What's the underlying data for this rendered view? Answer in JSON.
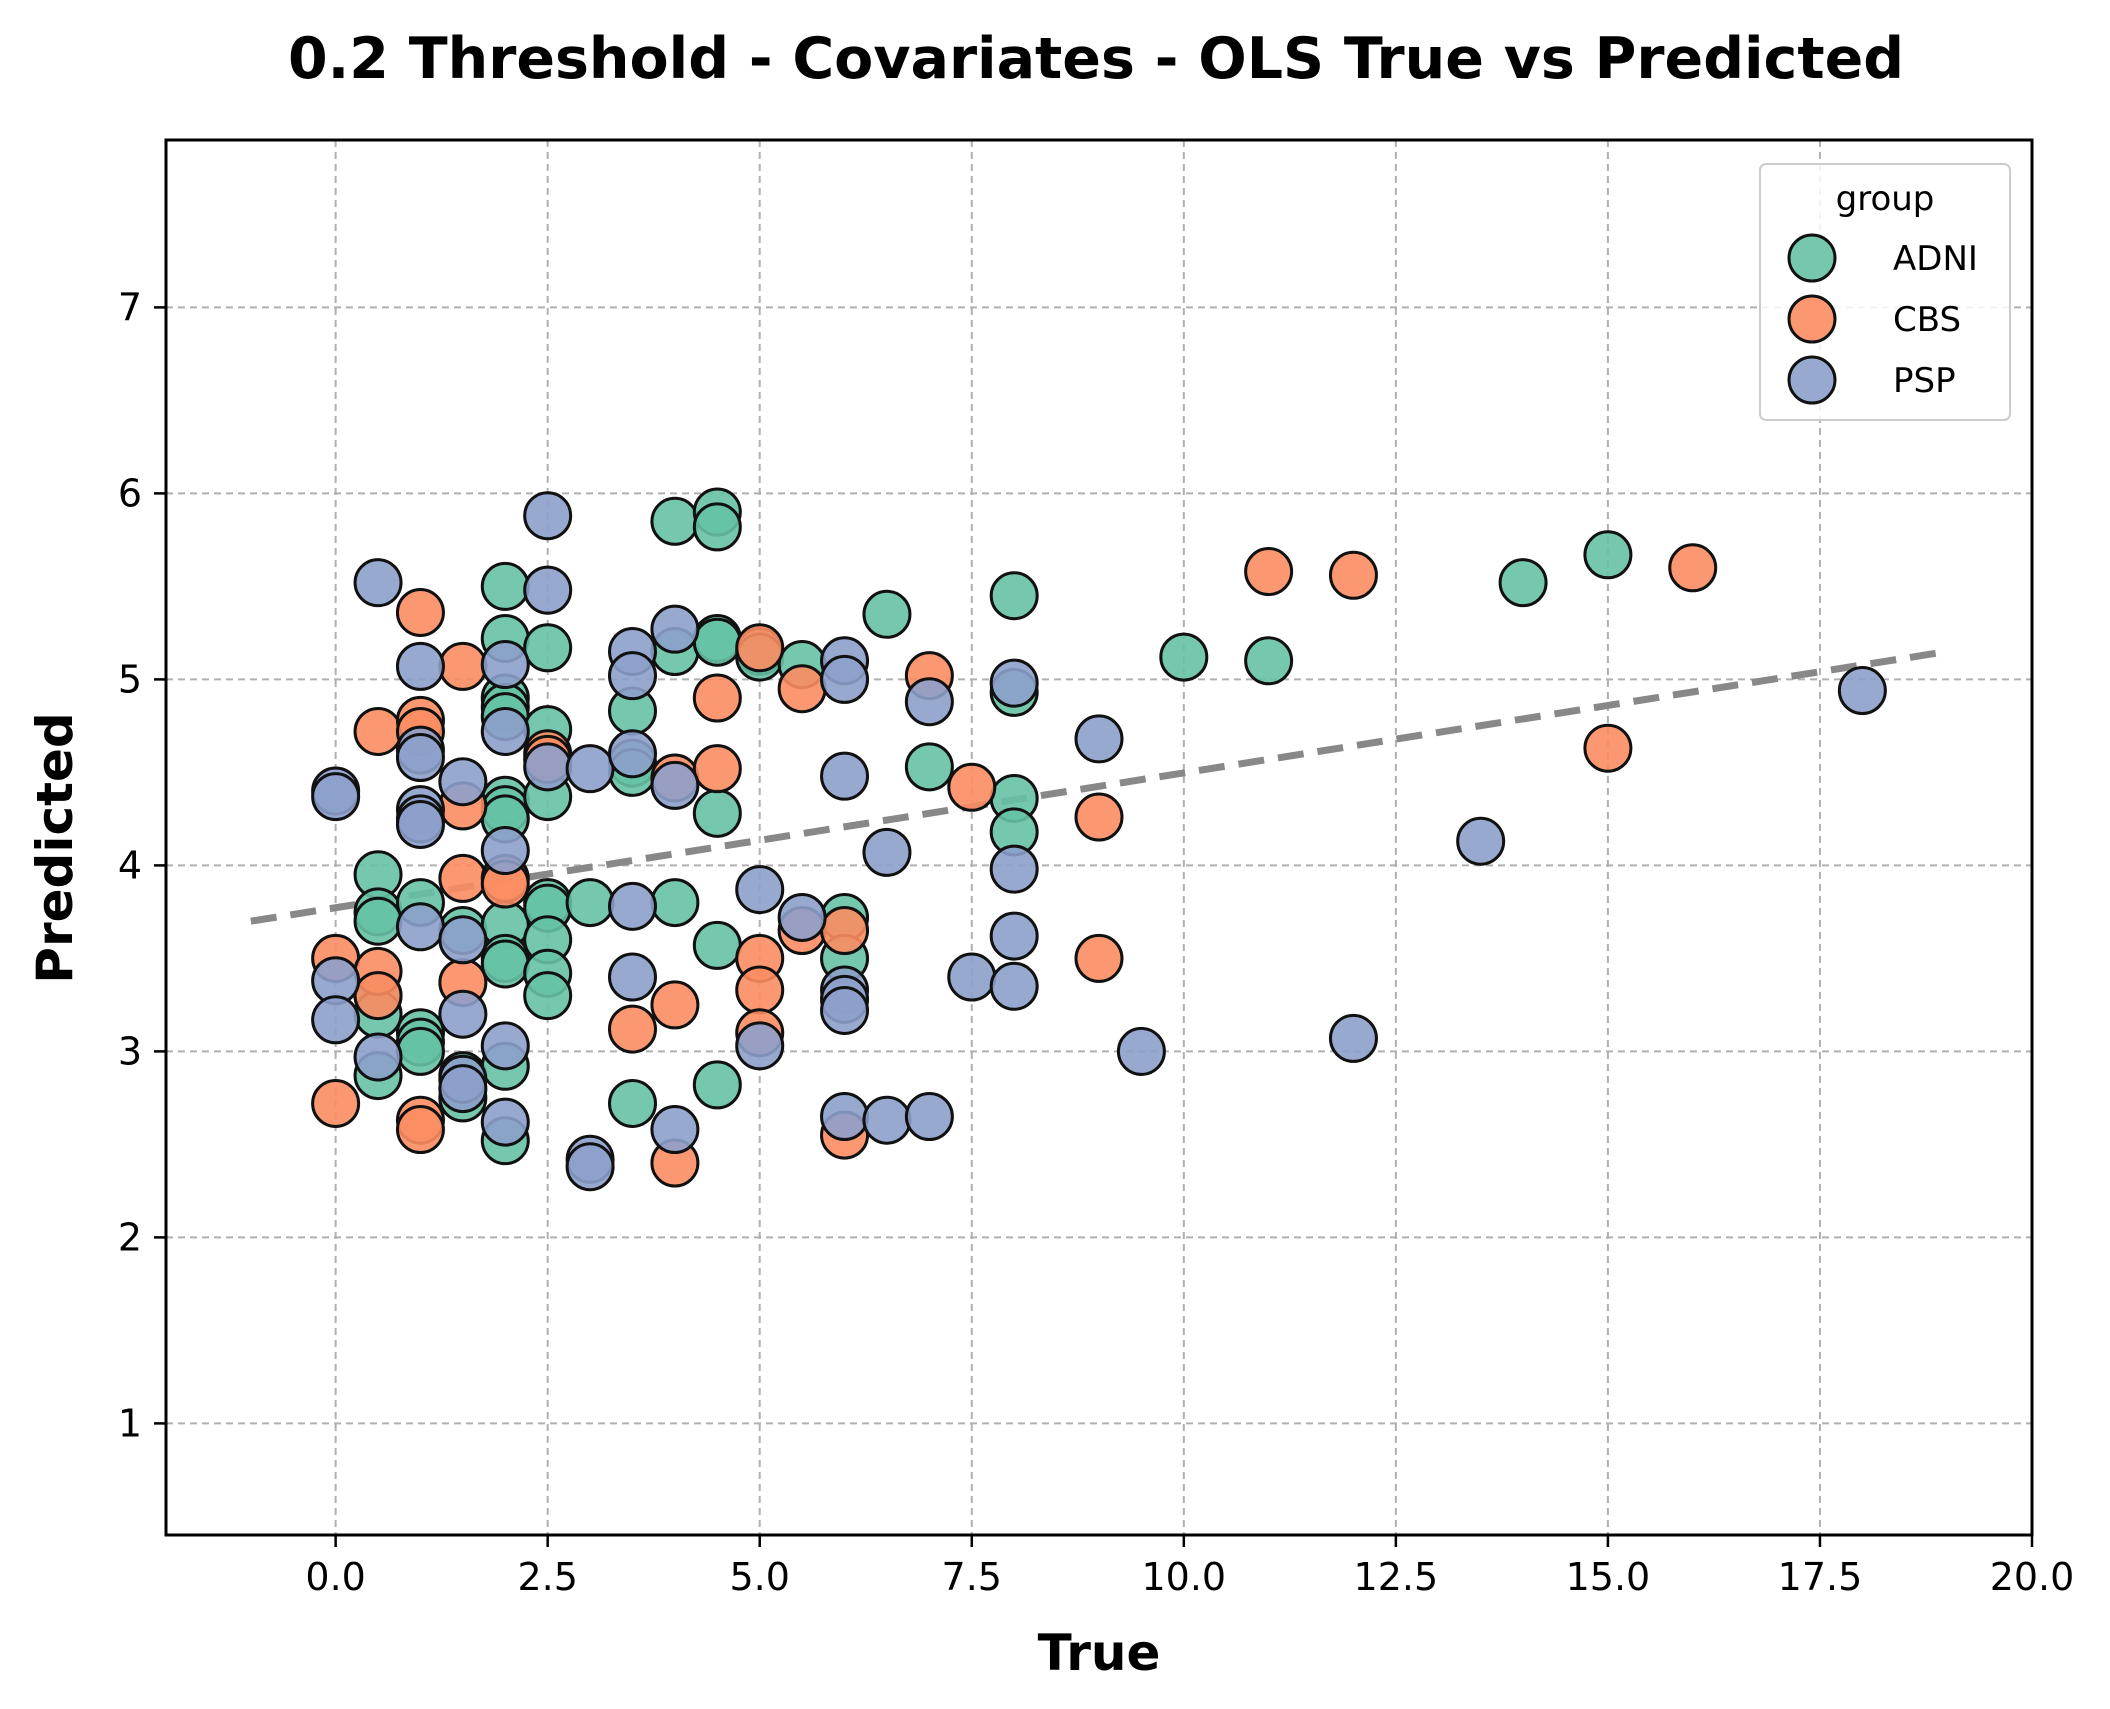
{
  "chart_data": {
    "type": "scatter",
    "title": "0.2 Threshold - Covariates - OLS True vs Predicted",
    "xlabel": "True",
    "ylabel": "Predicted",
    "xlim": [
      -2.0,
      20.0
    ],
    "ylim": [
      0.4,
      7.9
    ],
    "x_ticks": [
      "0.0",
      "2.5",
      "5.0",
      "7.5",
      "10.0",
      "12.5",
      "15.0",
      "17.5",
      "20.0"
    ],
    "y_ticks": [
      "1",
      "2",
      "3",
      "4",
      "5",
      "6",
      "7"
    ],
    "grid": true,
    "legend": {
      "title": "group",
      "position": "top-right"
    },
    "trend_line": {
      "x": [
        -1.0,
        19.0
      ],
      "y": [
        3.7,
        5.15
      ],
      "color": "#888888",
      "style": "dashed"
    },
    "series": [
      {
        "name": "ADNI",
        "color": "#66c2a5",
        "points": [
          [
            0.5,
            3.95
          ],
          [
            0.5,
            3.75
          ],
          [
            0.5,
            3.7
          ],
          [
            0.5,
            3.3
          ],
          [
            0.5,
            3.2
          ],
          [
            0.5,
            2.87
          ],
          [
            1,
            3.8
          ],
          [
            1,
            3.1
          ],
          [
            1,
            3.05
          ],
          [
            1,
            3.0
          ],
          [
            1.5,
            3.65
          ],
          [
            1.5,
            2.87
          ],
          [
            1.5,
            2.75
          ],
          [
            2,
            5.5
          ],
          [
            2,
            5.22
          ],
          [
            2,
            4.9
          ],
          [
            2,
            4.85
          ],
          [
            2,
            4.8
          ],
          [
            2,
            4.35
          ],
          [
            2,
            4.3
          ],
          [
            2,
            4.25
          ],
          [
            2,
            3.68
          ],
          [
            2,
            3.5
          ],
          [
            2,
            3.47
          ],
          [
            2,
            2.92
          ],
          [
            2,
            2.52
          ],
          [
            2.5,
            5.17
          ],
          [
            2.5,
            4.73
          ],
          [
            2.5,
            4.37
          ],
          [
            2.5,
            3.8
          ],
          [
            2.5,
            3.77
          ],
          [
            2.5,
            3.6
          ],
          [
            2.5,
            3.42
          ],
          [
            2.5,
            3.3
          ],
          [
            3,
            3.8
          ],
          [
            3.5,
            4.83
          ],
          [
            3.5,
            4.55
          ],
          [
            3.5,
            4.5
          ],
          [
            3.5,
            2.72
          ],
          [
            4,
            5.85
          ],
          [
            4,
            5.15
          ],
          [
            4,
            3.8
          ],
          [
            4.5,
            5.9
          ],
          [
            4.5,
            5.82
          ],
          [
            4.5,
            5.22
          ],
          [
            4.5,
            5.2
          ],
          [
            4.5,
            4.28
          ],
          [
            4.5,
            3.57
          ],
          [
            4.5,
            2.82
          ],
          [
            5,
            5.15
          ],
          [
            5,
            5.12
          ],
          [
            5.5,
            5.08
          ],
          [
            6,
            3.72
          ],
          [
            6,
            3.5
          ],
          [
            6.5,
            5.35
          ],
          [
            7,
            4.53
          ],
          [
            8,
            5.45
          ],
          [
            8,
            4.93
          ],
          [
            8,
            4.36
          ],
          [
            8,
            4.18
          ],
          [
            10,
            5.12
          ],
          [
            11,
            5.1
          ],
          [
            14,
            5.52
          ],
          [
            15,
            5.67
          ]
        ]
      },
      {
        "name": "CBS",
        "color": "#fc8d62",
        "points": [
          [
            0,
            3.5
          ],
          [
            0,
            2.72
          ],
          [
            0.5,
            4.72
          ],
          [
            0.5,
            3.43
          ],
          [
            0.5,
            3.3
          ],
          [
            1,
            5.36
          ],
          [
            1,
            4.78
          ],
          [
            1,
            4.72
          ],
          [
            1,
            2.63
          ],
          [
            1,
            2.58
          ],
          [
            1.5,
            5.07
          ],
          [
            1.5,
            4.32
          ],
          [
            1.5,
            3.93
          ],
          [
            1.5,
            3.37
          ],
          [
            2,
            3.93
          ],
          [
            2,
            3.9
          ],
          [
            2.5,
            4.6
          ],
          [
            2.5,
            4.57
          ],
          [
            3.5,
            3.12
          ],
          [
            4,
            4.47
          ],
          [
            4,
            3.25
          ],
          [
            4,
            2.4
          ],
          [
            4.5,
            4.9
          ],
          [
            4.5,
            4.52
          ],
          [
            5,
            5.17
          ],
          [
            5,
            3.5
          ],
          [
            5,
            3.33
          ],
          [
            5,
            3.1
          ],
          [
            5.5,
            4.95
          ],
          [
            5.5,
            3.65
          ],
          [
            6,
            3.65
          ],
          [
            6,
            2.55
          ],
          [
            7,
            5.02
          ],
          [
            7.5,
            4.42
          ],
          [
            9,
            4.26
          ],
          [
            9,
            3.5
          ],
          [
            11,
            5.58
          ],
          [
            12,
            5.56
          ],
          [
            15,
            4.63
          ],
          [
            16,
            5.6
          ]
        ]
      },
      {
        "name": "PSP",
        "color": "#8da0cb",
        "points": [
          [
            0,
            4.4
          ],
          [
            0,
            4.37
          ],
          [
            0,
            3.38
          ],
          [
            0,
            3.17
          ],
          [
            0.5,
            5.52
          ],
          [
            0.5,
            2.97
          ],
          [
            1,
            5.07
          ],
          [
            1,
            4.62
          ],
          [
            1,
            4.58
          ],
          [
            1,
            4.3
          ],
          [
            1,
            4.25
          ],
          [
            1,
            4.22
          ],
          [
            1,
            3.67
          ],
          [
            1.5,
            4.45
          ],
          [
            1.5,
            3.6
          ],
          [
            1.5,
            3.2
          ],
          [
            1.5,
            2.85
          ],
          [
            1.5,
            2.8
          ],
          [
            2,
            5.08
          ],
          [
            2,
            4.72
          ],
          [
            2,
            4.08
          ],
          [
            2,
            3.03
          ],
          [
            2,
            2.62
          ],
          [
            2.5,
            5.88
          ],
          [
            2.5,
            5.48
          ],
          [
            2.5,
            4.53
          ],
          [
            3,
            4.52
          ],
          [
            3,
            2.42
          ],
          [
            3,
            2.38
          ],
          [
            3.5,
            5.15
          ],
          [
            3.5,
            5.02
          ],
          [
            3.5,
            4.6
          ],
          [
            3.5,
            3.78
          ],
          [
            3.5,
            3.4
          ],
          [
            4,
            5.27
          ],
          [
            4,
            4.43
          ],
          [
            4,
            2.58
          ],
          [
            5,
            3.87
          ],
          [
            5,
            3.03
          ],
          [
            5.5,
            3.72
          ],
          [
            6,
            5.1
          ],
          [
            6,
            5.0
          ],
          [
            6,
            4.48
          ],
          [
            6,
            3.33
          ],
          [
            6,
            3.28
          ],
          [
            6,
            3.22
          ],
          [
            6,
            2.65
          ],
          [
            6.5,
            4.07
          ],
          [
            6.5,
            2.63
          ],
          [
            7,
            4.88
          ],
          [
            7,
            2.65
          ],
          [
            7.5,
            3.4
          ],
          [
            8,
            4.98
          ],
          [
            8,
            3.98
          ],
          [
            8,
            3.62
          ],
          [
            8,
            3.35
          ],
          [
            9,
            4.68
          ],
          [
            9.5,
            3.0
          ],
          [
            12,
            3.07
          ],
          [
            13.5,
            4.13
          ],
          [
            18,
            4.94
          ]
        ]
      }
    ]
  }
}
